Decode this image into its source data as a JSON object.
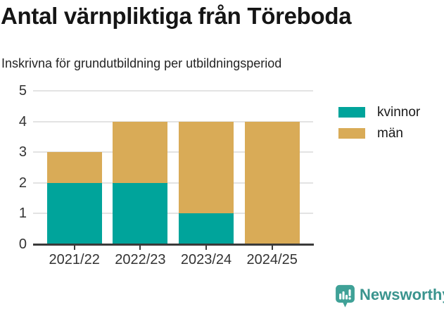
{
  "header": {
    "title": "Antal värnpliktiga från Töreboda",
    "subtitle": "Inskrivna för grundutbildning per utbildningsperiod"
  },
  "chart_data": {
    "type": "bar",
    "stacked": true,
    "title": "Antal värnpliktiga från Töreboda",
    "subtitle": "Inskrivna för grundutbildning per utbildningsperiod",
    "categories": [
      "2021/22",
      "2022/23",
      "2023/24",
      "2024/25"
    ],
    "series": [
      {
        "name": "kvinnor",
        "color": "#00a49b",
        "values": [
          2,
          2,
          1,
          0
        ]
      },
      {
        "name": "män",
        "color": "#d9ab57",
        "values": [
          1,
          2,
          3,
          4
        ]
      }
    ],
    "totals": [
      3,
      4,
      4,
      4
    ],
    "xlabel": "",
    "ylabel": "",
    "ylim": [
      0,
      5
    ],
    "yticks": [
      0,
      1,
      2,
      3,
      4,
      5
    ],
    "grid": true,
    "gridline_color": "#e3e3e3",
    "axis_color": "#3a3a3a",
    "legend_position": "top-right"
  },
  "legend": {
    "items": [
      {
        "label": "kvinnor",
        "color": "#00a49b"
      },
      {
        "label": "män",
        "color": "#d9ab57"
      }
    ]
  },
  "footer": {
    "brand": "Newsworthy",
    "brand_color": "#3a948e",
    "logo_icon": "bar-chart-speech-bubble-icon"
  }
}
